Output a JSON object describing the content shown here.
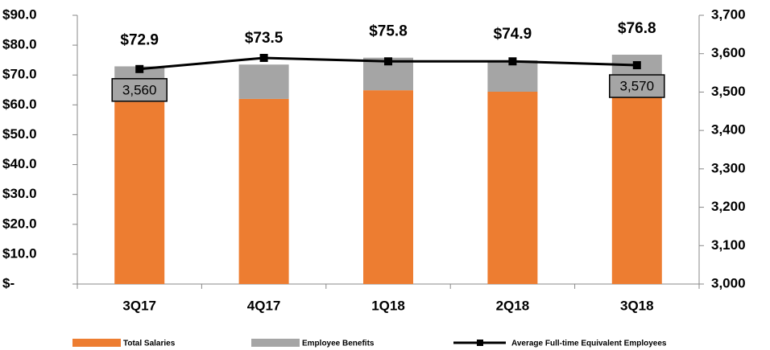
{
  "chart_data": {
    "type": "bar",
    "categories": [
      "3Q17",
      "4Q17",
      "1Q18",
      "2Q18",
      "3Q18"
    ],
    "series": [
      {
        "name": "Total Salaries",
        "color": "#ed7d31",
        "values": [
          61.0,
          62.0,
          64.9,
          64.4,
          65.5
        ]
      },
      {
        "name": "Employee Benefits",
        "color": "#a5a5a5",
        "values": [
          11.9,
          11.5,
          10.9,
          10.5,
          11.3
        ]
      },
      {
        "name": "Average Full-time Equivalent Employees",
        "color": "#000000",
        "axis": "y2",
        "type": "line",
        "values": [
          3560,
          3589,
          3580,
          3580,
          3570
        ],
        "value_labels": [
          "3,560",
          null,
          null,
          null,
          "3,570"
        ]
      }
    ],
    "totals": [
      72.9,
      73.5,
      75.8,
      74.9,
      76.8
    ],
    "total_labels": [
      "$72.9",
      "$73.5",
      "$75.8",
      "$74.9",
      "$76.8"
    ],
    "ylim": [
      0,
      90
    ],
    "yticks": [
      {
        "value": 0,
        "label": "$-"
      },
      {
        "value": 10,
        "label": "$10.0"
      },
      {
        "value": 20,
        "label": "$20.0"
      },
      {
        "value": 30,
        "label": "$30.0"
      },
      {
        "value": 40,
        "label": "$40.0"
      },
      {
        "value": 50,
        "label": "$50.0"
      },
      {
        "value": 60,
        "label": "$60.0"
      },
      {
        "value": 70,
        "label": "$70.0"
      },
      {
        "value": 80,
        "label": "$80.0"
      },
      {
        "value": 90,
        "label": "$90.0"
      }
    ],
    "y2lim": [
      3000,
      3700
    ],
    "y2ticks": [
      {
        "value": 3000,
        "label": "3,000"
      },
      {
        "value": 3100,
        "label": "3,100"
      },
      {
        "value": 3200,
        "label": "3,200"
      },
      {
        "value": 3300,
        "label": "3,300"
      },
      {
        "value": 3400,
        "label": "3,400"
      },
      {
        "value": 3500,
        "label": "3,500"
      },
      {
        "value": 3600,
        "label": "3,600"
      },
      {
        "value": 3700,
        "label": "3,700"
      }
    ],
    "legend": "bottom"
  }
}
